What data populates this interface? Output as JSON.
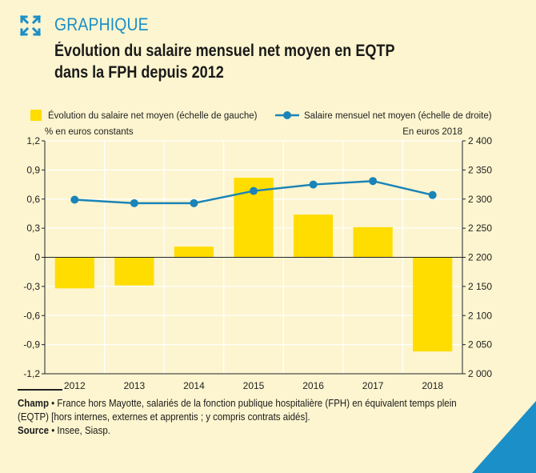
{
  "header": {
    "kicker": "GRAPHIQUE",
    "title_line1": "Évolution du salaire mensuel net moyen en EQTP",
    "title_line2": "dans la FPH depuis 2012"
  },
  "footer": {
    "champ_label": "Champ",
    "champ_text": "France hors Mayotte, salariés de la fonction publique hospitalière (FPH) en équivalent temps plein (EQTP) [hors internes, externes et apprentis ; y compris contrats aidés].",
    "source_label": "Source",
    "source_text": "Insee, Siasp."
  },
  "colors": {
    "background": "#fdf5cf",
    "bar": "#ffdd00",
    "line": "#1a84b8",
    "accent": "#1b8fc7",
    "grid": "#ffffff"
  },
  "icons": {
    "expand": "expand-arrows-icon"
  },
  "chart_data": {
    "type": "bar+line",
    "categories": [
      "2012",
      "2013",
      "2014",
      "2015",
      "2016",
      "2017",
      "2018"
    ],
    "series": [
      {
        "name": "Évolution du salaire net moyen (échelle de gauche)",
        "type": "bar",
        "axis": "left",
        "values": [
          -0.32,
          -0.29,
          0.11,
          0.82,
          0.44,
          0.31,
          -0.97
        ]
      },
      {
        "name": "Salaire mensuel net moyen (échelle de droite)",
        "type": "line",
        "axis": "right",
        "values": [
          2299,
          2293,
          2293,
          2314,
          2325,
          2331,
          2307
        ]
      }
    ],
    "left_axis": {
      "unit_label": "% en euros constants",
      "ylim": [
        -1.2,
        1.2
      ],
      "tick_values": [
        1.2,
        0.9,
        0.6,
        0.3,
        0,
        -0.3,
        -0.6,
        -0.9,
        -1.2
      ],
      "tick_labels": [
        "1,2",
        "0,9",
        "0,6",
        "0,3",
        "0",
        "-0,3",
        "-0,6",
        "-0,9",
        "-1,2"
      ]
    },
    "right_axis": {
      "unit_label": "En euros 2018",
      "ylim": [
        2000,
        2400
      ],
      "tick_values": [
        2400,
        2350,
        2300,
        2250,
        2200,
        2150,
        2100,
        2050,
        2000
      ],
      "tick_labels": [
        "2 400",
        "2 350",
        "2 300",
        "2 250",
        "2 200",
        "2 150",
        "2 100",
        "2 050",
        "2 000"
      ]
    },
    "grid": true,
    "legend": "top"
  }
}
